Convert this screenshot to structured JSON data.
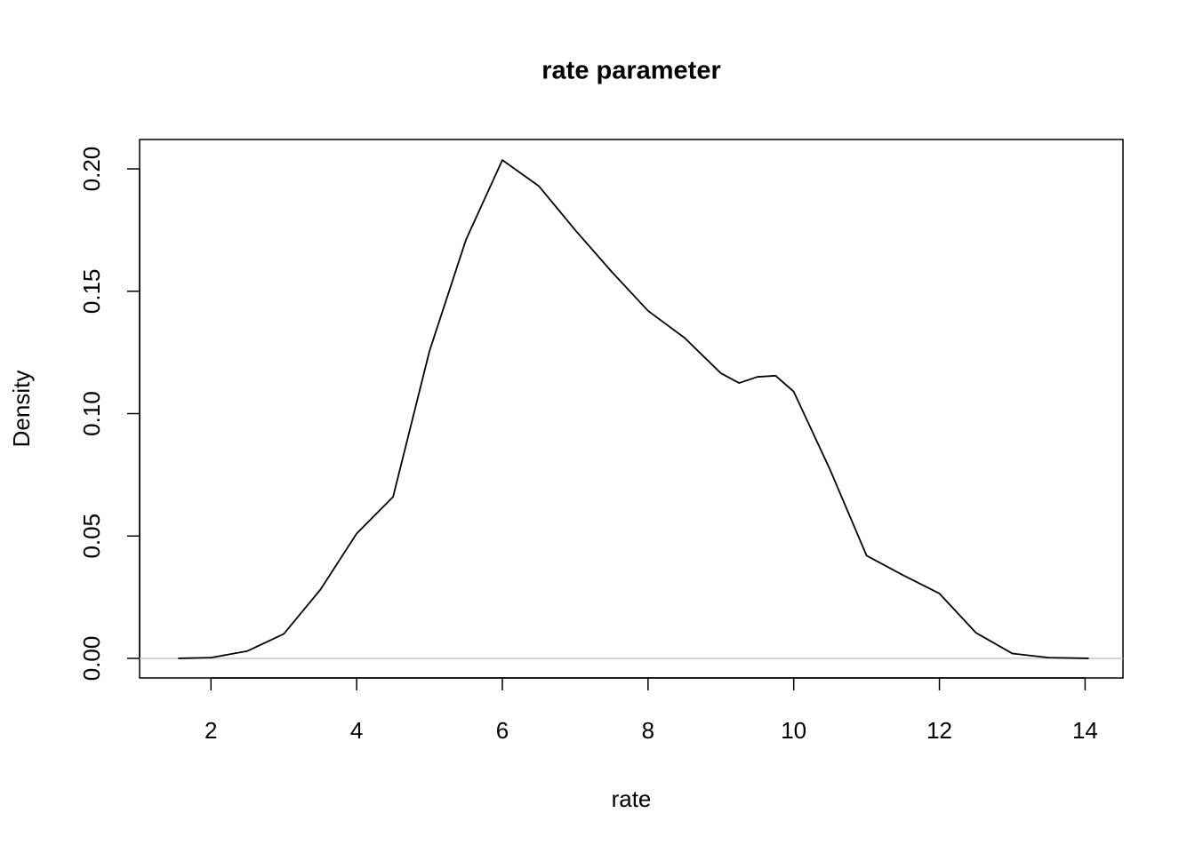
{
  "chart_data": {
    "type": "line",
    "title": "rate parameter",
    "x_label": "rate",
    "y_label": "Density",
    "x": [
      1.55,
      2.0,
      2.5,
      3.0,
      3.5,
      4.0,
      4.5,
      5.0,
      5.5,
      6.0,
      6.5,
      7.0,
      7.5,
      8.0,
      8.5,
      9.0,
      9.25,
      9.5,
      9.75,
      10.0,
      10.5,
      11.0,
      11.5,
      12.0,
      12.5,
      13.0,
      13.5,
      14.05
    ],
    "series": [
      {
        "name": "density",
        "color": "#000000",
        "values": [
          0.0,
          0.0003,
          0.003,
          0.01,
          0.028,
          0.051,
          0.066,
          0.1256,
          0.171,
          0.2036,
          0.193,
          0.175,
          0.158,
          0.142,
          0.131,
          0.1165,
          0.1125,
          0.115,
          0.1155,
          0.109,
          0.077,
          0.042,
          0.034,
          0.0265,
          0.0105,
          0.002,
          0.0003,
          0.0
        ]
      }
    ],
    "xlim": [
      1.02,
      14.52
    ],
    "ylim": [
      -0.008,
      0.212
    ],
    "xticks": [
      2,
      4,
      6,
      8,
      10,
      12,
      14
    ],
    "yticks": [
      {
        "value": 0,
        "label": "0.00"
      },
      0.05,
      {
        "value": 0.1,
        "label": "0.10"
      },
      0.15,
      {
        "value": 0.2,
        "label": "0.20"
      }
    ],
    "grid": false
  }
}
